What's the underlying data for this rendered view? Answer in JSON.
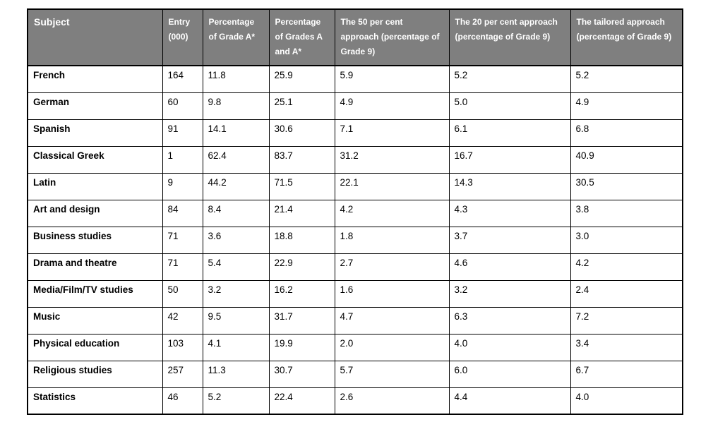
{
  "colors": {
    "header_background": "#7f7f7f",
    "header_text": "#ffffff",
    "border": "#000000",
    "body_text": "#000000",
    "page_background": "#ffffff"
  },
  "table": {
    "columns": [
      {
        "label": "Subject"
      },
      {
        "label": "Entry (000)"
      },
      {
        "label": "Percentage of Grade A*"
      },
      {
        "label": "Percentage of Grades A and A*"
      },
      {
        "label": "The 50 per cent approach (percentage of Grade 9)"
      },
      {
        "label": "The 20 per cent approach (percentage of Grade 9)"
      },
      {
        "label": "The tailored approach (percentage of Grade 9)"
      }
    ],
    "rows": [
      {
        "subject": "French",
        "values": [
          "164",
          "11.8",
          "25.9",
          "5.9",
          "5.2",
          "5.2"
        ]
      },
      {
        "subject": "German",
        "values": [
          "60",
          "9.8",
          "25.1",
          "4.9",
          "5.0",
          "4.9"
        ]
      },
      {
        "subject": "Spanish",
        "values": [
          "91",
          "14.1",
          "30.6",
          "7.1",
          "6.1",
          "6.8"
        ]
      },
      {
        "subject": "Classical Greek",
        "values": [
          "1",
          "62.4",
          "83.7",
          "31.2",
          "16.7",
          "40.9"
        ]
      },
      {
        "subject": "Latin",
        "values": [
          "9",
          "44.2",
          "71.5",
          "22.1",
          "14.3",
          "30.5"
        ]
      },
      {
        "subject": "Art and design",
        "values": [
          "84",
          "8.4",
          "21.4",
          "4.2",
          "4.3",
          "3.8"
        ]
      },
      {
        "subject": "Business studies",
        "values": [
          "71",
          "3.6",
          "18.8",
          "1.8",
          "3.7",
          "3.0"
        ]
      },
      {
        "subject": "Drama and theatre",
        "values": [
          "71",
          "5.4",
          "22.9",
          "2.7",
          "4.6",
          "4.2"
        ]
      },
      {
        "subject": "Media/Film/TV studies",
        "values": [
          "50",
          "3.2",
          "16.2",
          "1.6",
          "3.2",
          "2.4"
        ]
      },
      {
        "subject": "Music",
        "values": [
          "42",
          "9.5",
          "31.7",
          "4.7",
          "6.3",
          "7.2"
        ]
      },
      {
        "subject": "Physical education",
        "values": [
          "103",
          "4.1",
          "19.9",
          "2.0",
          "4.0",
          "3.4"
        ]
      },
      {
        "subject": "Religious studies",
        "values": [
          "257",
          "11.3",
          "30.7",
          "5.7",
          "6.0",
          "6.7"
        ]
      },
      {
        "subject": "Statistics",
        "values": [
          "46",
          "5.2",
          "22.4",
          "2.6",
          "4.4",
          "4.0"
        ]
      }
    ]
  },
  "chart_data": {
    "type": "table",
    "title": "",
    "columns": [
      "Subject",
      "Entry (000)",
      "Percentage of Grade A*",
      "Percentage of Grades A and A*",
      "The 50 per cent approach (percentage of Grade 9)",
      "The 20 per cent approach (percentage of Grade 9)",
      "The tailored approach (percentage of Grade 9)"
    ],
    "rows": [
      [
        "French",
        164,
        11.8,
        25.9,
        5.9,
        5.2,
        5.2
      ],
      [
        "German",
        60,
        9.8,
        25.1,
        4.9,
        5.0,
        4.9
      ],
      [
        "Spanish",
        91,
        14.1,
        30.6,
        7.1,
        6.1,
        6.8
      ],
      [
        "Classical Greek",
        1,
        62.4,
        83.7,
        31.2,
        16.7,
        40.9
      ],
      [
        "Latin",
        9,
        44.2,
        71.5,
        22.1,
        14.3,
        30.5
      ],
      [
        "Art and design",
        84,
        8.4,
        21.4,
        4.2,
        4.3,
        3.8
      ],
      [
        "Business studies",
        71,
        3.6,
        18.8,
        1.8,
        3.7,
        3.0
      ],
      [
        "Drama and theatre",
        71,
        5.4,
        22.9,
        2.7,
        4.6,
        4.2
      ],
      [
        "Media/Film/TV studies",
        50,
        3.2,
        16.2,
        1.6,
        3.2,
        2.4
      ],
      [
        "Music",
        42,
        9.5,
        31.7,
        4.7,
        6.3,
        7.2
      ],
      [
        "Physical education",
        103,
        4.1,
        19.9,
        2.0,
        4.0,
        3.4
      ],
      [
        "Religious studies",
        257,
        11.3,
        30.7,
        5.7,
        6.0,
        6.7
      ],
      [
        "Statistics",
        46,
        5.2,
        22.4,
        2.6,
        4.4,
        4.0
      ]
    ]
  }
}
